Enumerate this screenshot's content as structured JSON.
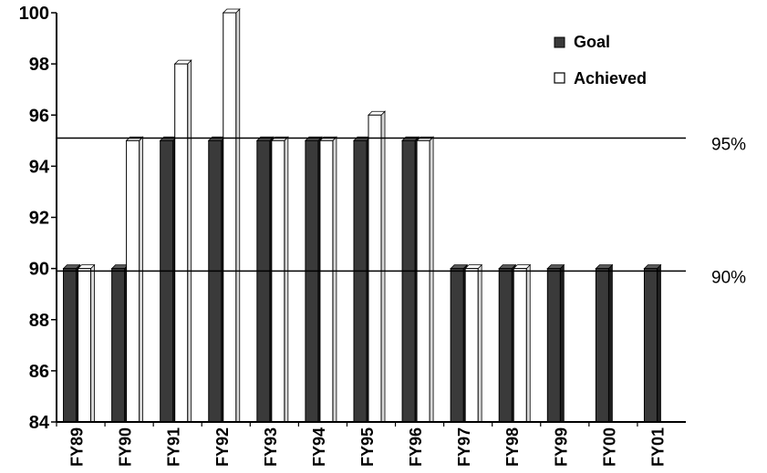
{
  "chart_data": {
    "type": "bar",
    "title": "",
    "xlabel": "",
    "ylabel": "",
    "categories": [
      "FY89",
      "FY90",
      "FY91",
      "FY92",
      "FY93",
      "FY94",
      "FY95",
      "FY96",
      "FY97",
      "FY98",
      "FY99",
      "FY00",
      "FY01"
    ],
    "series": [
      {
        "name": "Goal",
        "values": [
          90,
          90,
          95,
          95,
          95,
          95,
          95,
          95,
          90,
          90,
          90,
          90,
          90
        ],
        "color": "#3a3a3a"
      },
      {
        "name": "Achieved",
        "values": [
          90,
          95,
          98,
          100,
          95,
          95,
          96,
          95,
          90,
          90,
          84,
          84,
          84
        ],
        "color": "#ffffff"
      }
    ],
    "ylim": [
      84,
      100
    ],
    "yticks": [
      "84",
      "86",
      "88",
      "90",
      "92",
      "94",
      "96",
      "98",
      "100"
    ],
    "reference_lines": [
      {
        "value": 95.1,
        "label": "95%"
      },
      {
        "value": 89.9,
        "label": "90%"
      }
    ],
    "grid": false,
    "legend": "top-right"
  }
}
